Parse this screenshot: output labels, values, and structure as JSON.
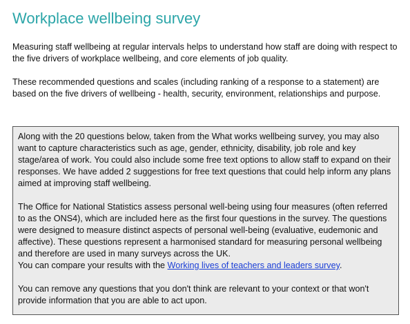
{
  "header": {
    "title": "Workplace wellbeing survey"
  },
  "intro": {
    "paragraphs": [
      "Measuring staff wellbeing at regular intervals helps to understand how staff are doing with respect to the five drivers of workplace wellbeing, and core elements of job quality.",
      "These recommended questions and scales (including ranking of a response to a statement) are based on the five drivers of wellbeing - health, security, environment, relationships and purpose."
    ]
  },
  "notice": {
    "paragraph_1": "Along with the 20 questions below, taken from the What works wellbeing survey, you may also want to capture characteristics such as age, gender, ethnicity, disability, job role and key stage/area of work. You could also include some free text options to allow staff to expand on their responses. We have added 2 suggestions for free text questions that could help inform any plans aimed at improving staff wellbeing.",
    "paragraph_2": "The Office for National Statistics assess personal well-being using four measures (often referred to as the ONS4), which are included here as the first four questions in the survey. The questions were designed to measure distinct aspects of personal well-being (evaluative, eudemonic and affective). These questions represent a harmonised standard for measuring personal wellbeing and therefore are used in many surveys across the UK.",
    "compare_before": "You can compare your results with the ",
    "compare_link": "Working lives of teachers and leaders survey",
    "compare_after": ".",
    "paragraph_3": "You can remove any questions that you don't think are relevant to your context or that won't provide information that you are able to act upon."
  }
}
